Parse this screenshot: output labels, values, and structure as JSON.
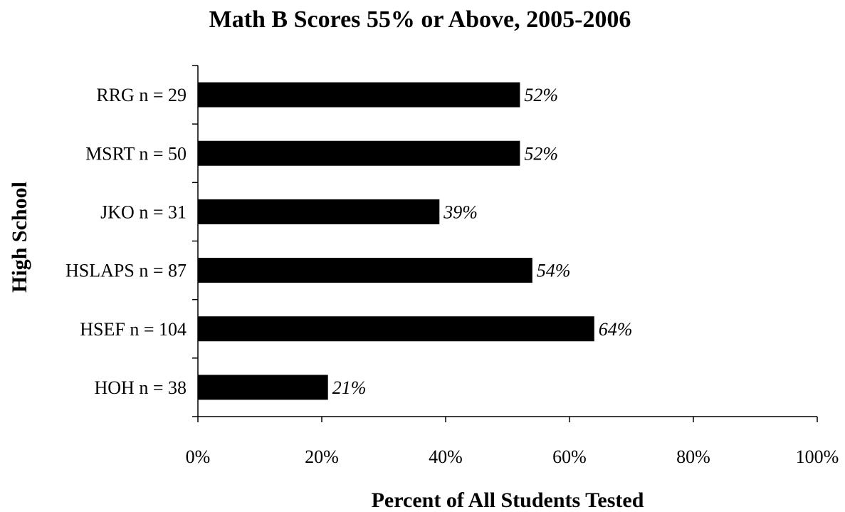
{
  "chart_data": {
    "type": "bar",
    "orientation": "horizontal",
    "title": "Math B Scores 55% or Above, 2005-2006",
    "xlabel": "Percent of All Students Tested",
    "ylabel": "High School",
    "categories": [
      "RRG n = 29",
      "MSRT n = 50",
      "JKO n = 31",
      "HSLAPS n = 87",
      "HSEF n = 104",
      "HOH n = 38"
    ],
    "values": [
      52,
      52,
      39,
      54,
      64,
      21
    ],
    "data_labels": [
      "52%",
      "52%",
      "39%",
      "54%",
      "64%",
      "21%"
    ],
    "xlim": [
      0,
      100
    ],
    "xticks": [
      0,
      20,
      40,
      60,
      80,
      100
    ],
    "xtick_labels": [
      "0%",
      "20%",
      "40%",
      "60%",
      "80%",
      "100%"
    ],
    "grid": false,
    "legend": "none",
    "bar_color": "#000000"
  }
}
